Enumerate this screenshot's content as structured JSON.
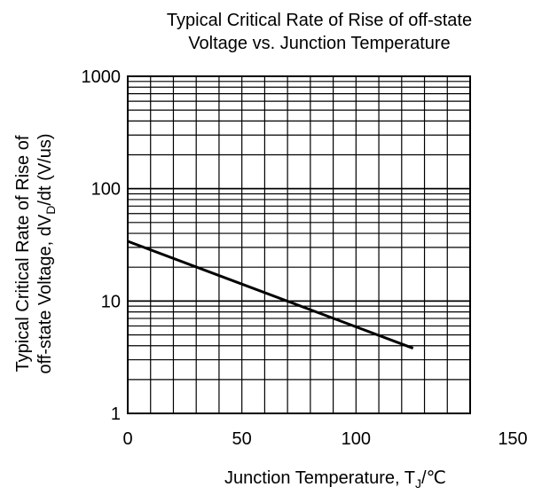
{
  "chart_data": {
    "type": "line",
    "title": "Typical Critical Rate of Rise of off-state Voltage vs. Junction Temperature",
    "title_lines": [
      "Typical Critical Rate of Rise of off-state",
      "Voltage vs. Junction Temperature"
    ],
    "xlabel": {
      "main": "Junction Temperature, T",
      "sub": "J",
      "unit": "/℃"
    },
    "ylabel": {
      "line1": "Typical Critical Rate of Rise of",
      "line2_prefix": "off-state Voltage, dV",
      "line2_sub": "D",
      "line2_suffix": "/dt (V/us)"
    },
    "xlim": [
      0,
      150
    ],
    "ylim": [
      1,
      1000
    ],
    "y_scale": "log",
    "grid": true,
    "x_ticks": [
      {
        "value": 0,
        "label": "0"
      },
      {
        "value": 50,
        "label": "50"
      },
      {
        "value": 100,
        "label": "100"
      },
      {
        "value": 150,
        "label": "150"
      }
    ],
    "y_ticks": [
      {
        "value": 1,
        "label": "1"
      },
      {
        "value": 10,
        "label": "10"
      },
      {
        "value": 100,
        "label": "100"
      },
      {
        "value": 1000,
        "label": "1000"
      }
    ],
    "series": [
      {
        "x": [
          0,
          125
        ],
        "y": [
          34,
          3.8
        ],
        "color": "#000000"
      }
    ]
  }
}
